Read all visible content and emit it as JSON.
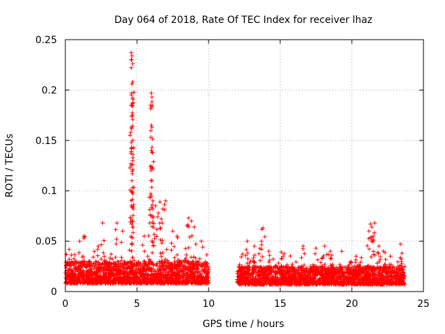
{
  "chart_data": {
    "type": "scatter",
    "title": "Day 064 of 2018, Rate Of TEC Index for receiver lhaz",
    "xlabel": "GPS time / hours",
    "ylabel": "ROTI / TECUs",
    "xlim": [
      0,
      25
    ],
    "ylim": [
      0,
      0.25
    ],
    "x_ticks": [
      0,
      5,
      10,
      15,
      20,
      25
    ],
    "x_tick_labels": [
      "0",
      "5",
      "10",
      "15",
      "20",
      "25"
    ],
    "y_ticks": [
      0,
      0.05,
      0.1,
      0.15,
      0.2,
      0.25
    ],
    "y_tick_labels": [
      "0",
      "0.05",
      "0.1",
      "0.15",
      "0.2",
      "0.25"
    ],
    "grid": true,
    "marker": "+",
    "marker_color": "#ff0000",
    "series": [
      {
        "name": "ROTI",
        "segments": [
          {
            "x_range": [
              0,
              10
            ],
            "baseline": [
              0.008,
              0.03
            ]
          },
          {
            "x_range": [
              12,
              23.7
            ],
            "baseline": [
              0.007,
              0.025
            ]
          }
        ],
        "points": [
          [
            4.6,
            0.237
          ],
          [
            4.65,
            0.234
          ],
          [
            4.6,
            0.23
          ],
          [
            4.7,
            0.226
          ],
          [
            4.6,
            0.222
          ],
          [
            4.7,
            0.208
          ],
          [
            4.65,
            0.206
          ],
          [
            4.7,
            0.192
          ],
          [
            4.6,
            0.185
          ],
          [
            4.7,
            0.175
          ],
          [
            4.6,
            0.163
          ],
          [
            4.7,
            0.15
          ],
          [
            4.6,
            0.142
          ],
          [
            4.7,
            0.13
          ],
          [
            4.65,
            0.11
          ],
          [
            4.7,
            0.103
          ],
          [
            4.6,
            0.085
          ],
          [
            4.75,
            0.082
          ],
          [
            4.6,
            0.072
          ],
          [
            4.7,
            0.07
          ],
          [
            6.0,
            0.197
          ],
          [
            6.05,
            0.193
          ],
          [
            5.95,
            0.185
          ],
          [
            6.0,
            0.183
          ],
          [
            6.0,
            0.165
          ],
          [
            6.05,
            0.163
          ],
          [
            6.0,
            0.14
          ],
          [
            6.05,
            0.138
          ],
          [
            6.0,
            0.122
          ],
          [
            6.05,
            0.11
          ],
          [
            6.0,
            0.095
          ],
          [
            6.1,
            0.09
          ],
          [
            6.3,
            0.085
          ],
          [
            6.5,
            0.078
          ],
          [
            6.6,
            0.089
          ],
          [
            6.8,
            0.082
          ],
          [
            7.0,
            0.09
          ],
          [
            5.9,
            0.068
          ],
          [
            6.7,
            0.072
          ],
          [
            8.6,
            0.073
          ],
          [
            8.8,
            0.07
          ],
          [
            8.5,
            0.065
          ],
          [
            9.0,
            0.064
          ],
          [
            2.6,
            0.068
          ],
          [
            3.6,
            0.068
          ],
          [
            4.0,
            0.06
          ],
          [
            1.3,
            0.055
          ],
          [
            1.0,
            0.05
          ],
          [
            2.3,
            0.045
          ],
          [
            5.5,
            0.055
          ],
          [
            7.5,
            0.06
          ],
          [
            7.8,
            0.055
          ],
          [
            9.5,
            0.05
          ],
          [
            13.8,
            0.063
          ],
          [
            13.7,
            0.05
          ],
          [
            12.7,
            0.05
          ],
          [
            13.2,
            0.045
          ],
          [
            14.2,
            0.04
          ],
          [
            15.2,
            0.035
          ],
          [
            16.6,
            0.045
          ],
          [
            17.5,
            0.043
          ],
          [
            18.1,
            0.045
          ],
          [
            18.5,
            0.04
          ],
          [
            19.3,
            0.04
          ],
          [
            20.3,
            0.035
          ],
          [
            21.3,
            0.067
          ],
          [
            21.4,
            0.064
          ],
          [
            21.6,
            0.068
          ],
          [
            21.2,
            0.06
          ],
          [
            21.5,
            0.055
          ],
          [
            21.9,
            0.045
          ],
          [
            22.2,
            0.04
          ],
          [
            22.7,
            0.035
          ],
          [
            23.4,
            0.047
          ],
          [
            23.5,
            0.038
          ]
        ]
      }
    ]
  }
}
